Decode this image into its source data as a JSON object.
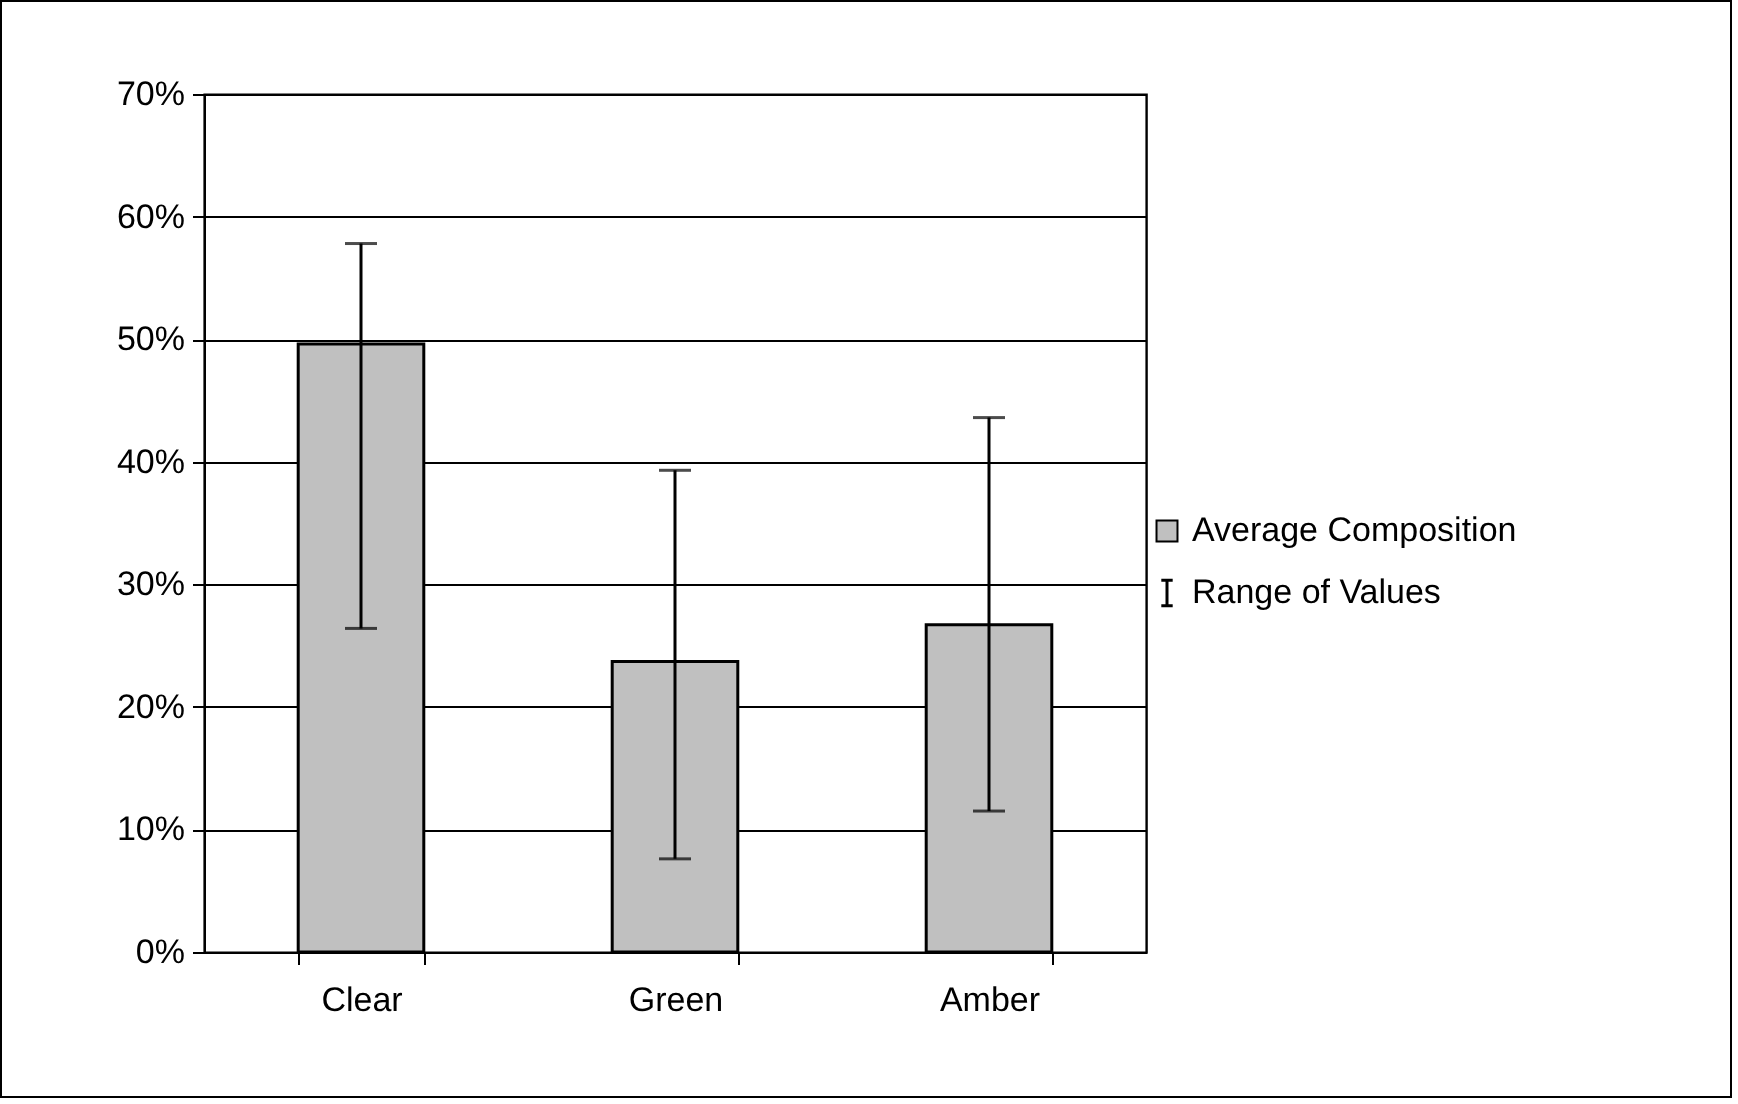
{
  "chart_data": {
    "type": "bar",
    "categories": [
      "Clear",
      "Green",
      "Amber"
    ],
    "series": [
      {
        "name": "Average Composition",
        "color": "#c0c0c0",
        "values": [
          49.6,
          23.7,
          26.7
        ],
        "errors": [
          [
            26.4,
            57.8
          ],
          [
            7.6,
            39.3
          ],
          [
            11.5,
            43.6
          ]
        ]
      }
    ],
    "annotations": [
      "Range of Values"
    ],
    "ylim": [
      0,
      70
    ],
    "yticks": [
      {
        "value": 0,
        "label": "0%"
      },
      {
        "value": 10,
        "label": "10%"
      },
      {
        "value": 20,
        "label": "20%"
      },
      {
        "value": 30,
        "label": "30%"
      },
      {
        "value": 40,
        "label": "40%"
      },
      {
        "value": 50,
        "label": "50%"
      },
      {
        "value": 60,
        "label": "60%"
      },
      {
        "value": 70,
        "label": "70%"
      }
    ],
    "grid": "y",
    "legend": "right"
  }
}
